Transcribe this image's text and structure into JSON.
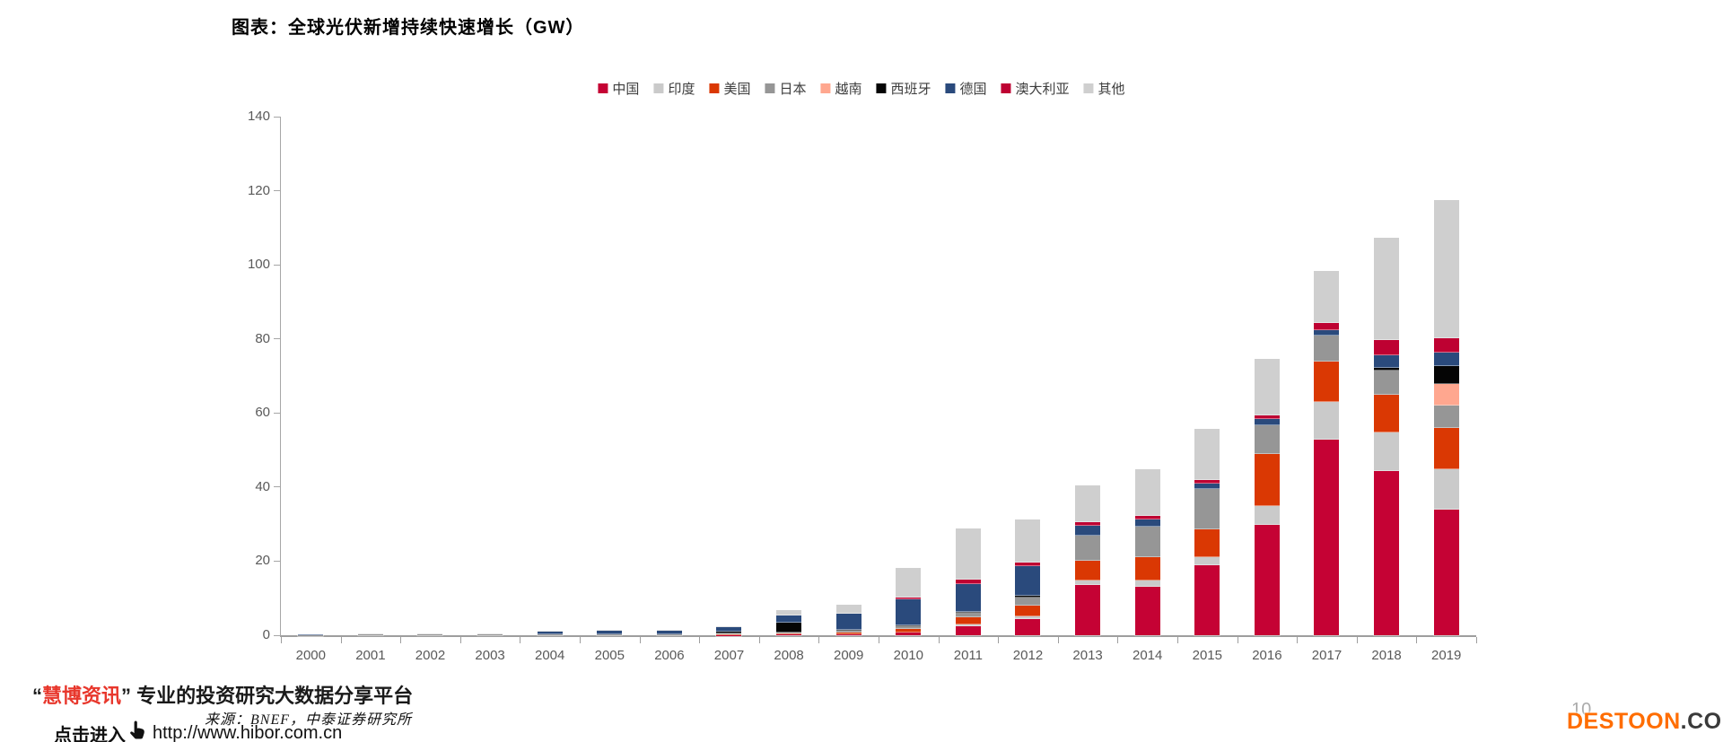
{
  "page": {
    "title": "图表：全球光伏新增持续快速增长（GW）",
    "source_note": "来源：BNEF，中泰证券研究所",
    "page_number": "10",
    "watermark": {
      "quote_open": "“",
      "brand": "慧博资讯",
      "quote_close": "”",
      "tagline": "专业的投资研究大数据分享平台",
      "cta": "点击进入",
      "url": "http://www.hibor.com.cn",
      "brand_color": "#E8372C",
      "hand_icon": "pointing-hand-cursor"
    },
    "footer_logo": {
      "main": "DESTOON",
      "suffix": ".COM",
      "main_color": "#FF6D00",
      "suffix_color": "#3A3A3A"
    }
  },
  "chart_data": {
    "type": "bar",
    "stacked": true,
    "title": "图表：全球光伏新增持续快速增长（GW）",
    "xlabel": "",
    "ylabel": "",
    "unit": "GW",
    "ylim": [
      0,
      140
    ],
    "yticks": [
      0,
      20,
      40,
      60,
      80,
      100,
      120,
      140
    ],
    "grid": false,
    "legend_position": "top",
    "categories": [
      "2000",
      "2001",
      "2002",
      "2003",
      "2004",
      "2005",
      "2006",
      "2007",
      "2008",
      "2009",
      "2010",
      "2011",
      "2012",
      "2013",
      "2014",
      "2015",
      "2016",
      "2017",
      "2018",
      "2019"
    ],
    "series": [
      {
        "name": "中国",
        "color": "#C50234",
        "values": [
          0,
          0,
          0,
          0,
          0,
          0,
          0,
          0.1,
          0.3,
          0.3,
          0.7,
          2.5,
          4.4,
          13.5,
          13.1,
          18.9,
          29.7,
          52.8,
          44.3,
          33.9
        ]
      },
      {
        "name": "印度",
        "color": "#CACACA",
        "values": [
          0,
          0,
          0,
          0,
          0,
          0,
          0,
          0,
          0,
          0,
          0,
          0.4,
          0.8,
          1.4,
          1.7,
          2.2,
          5.3,
          10.2,
          10.4,
          10.9
        ]
      },
      {
        "name": "美国",
        "color": "#DA3803",
        "values": [
          0,
          0,
          0,
          0,
          0,
          0,
          0,
          0.2,
          0.3,
          0.5,
          0.9,
          1.9,
          2.8,
          5.1,
          6.3,
          7.5,
          13.9,
          10.9,
          10.2,
          11.1
        ]
      },
      {
        "name": "日本",
        "color": "#969696",
        "values": [
          0.1,
          0.15,
          0.2,
          0.2,
          0.3,
          0.3,
          0.3,
          0.2,
          0.2,
          0.5,
          0.8,
          1.3,
          2.3,
          6.8,
          8.3,
          10.9,
          7.9,
          7.0,
          6.5,
          6.1
        ]
      },
      {
        "name": "越南",
        "color": "#FFA78F",
        "values": [
          0,
          0,
          0,
          0,
          0,
          0,
          0,
          0,
          0,
          0,
          0,
          0,
          0,
          0,
          0,
          0,
          0,
          0,
          0,
          5.8
        ]
      },
      {
        "name": "西班牙",
        "color": "#050505",
        "values": [
          0,
          0,
          0,
          0,
          0,
          0,
          0,
          0.5,
          2.6,
          0.1,
          0.3,
          0.3,
          0.3,
          0,
          0,
          0,
          0,
          0,
          0.7,
          4.9
        ]
      },
      {
        "name": "德国",
        "color": "#2A4A7C",
        "values": [
          0.1,
          0.1,
          0.1,
          0.15,
          0.6,
          0.8,
          0.8,
          1.1,
          1.9,
          4.4,
          6.9,
          7.5,
          8.0,
          2.7,
          1.9,
          1.5,
          1.6,
          1.5,
          3.6,
          3.6
        ]
      },
      {
        "name": "澳大利亚",
        "color": "#BE0132",
        "values": [
          0,
          0,
          0,
          0,
          0,
          0,
          0,
          0,
          0.1,
          0.1,
          0.5,
          1.2,
          1.0,
          1.0,
          1.0,
          1.0,
          1.0,
          1.9,
          4.1,
          3.9
        ]
      },
      {
        "name": "其他",
        "color": "#CFCFCF",
        "values": [
          0.1,
          0.15,
          0.2,
          0.25,
          0.2,
          0.3,
          0.4,
          0.4,
          1.4,
          2.3,
          8.0,
          13.8,
          11.6,
          9.9,
          12.6,
          13.8,
          15.2,
          14.0,
          27.4,
          37.3
        ]
      }
    ]
  }
}
